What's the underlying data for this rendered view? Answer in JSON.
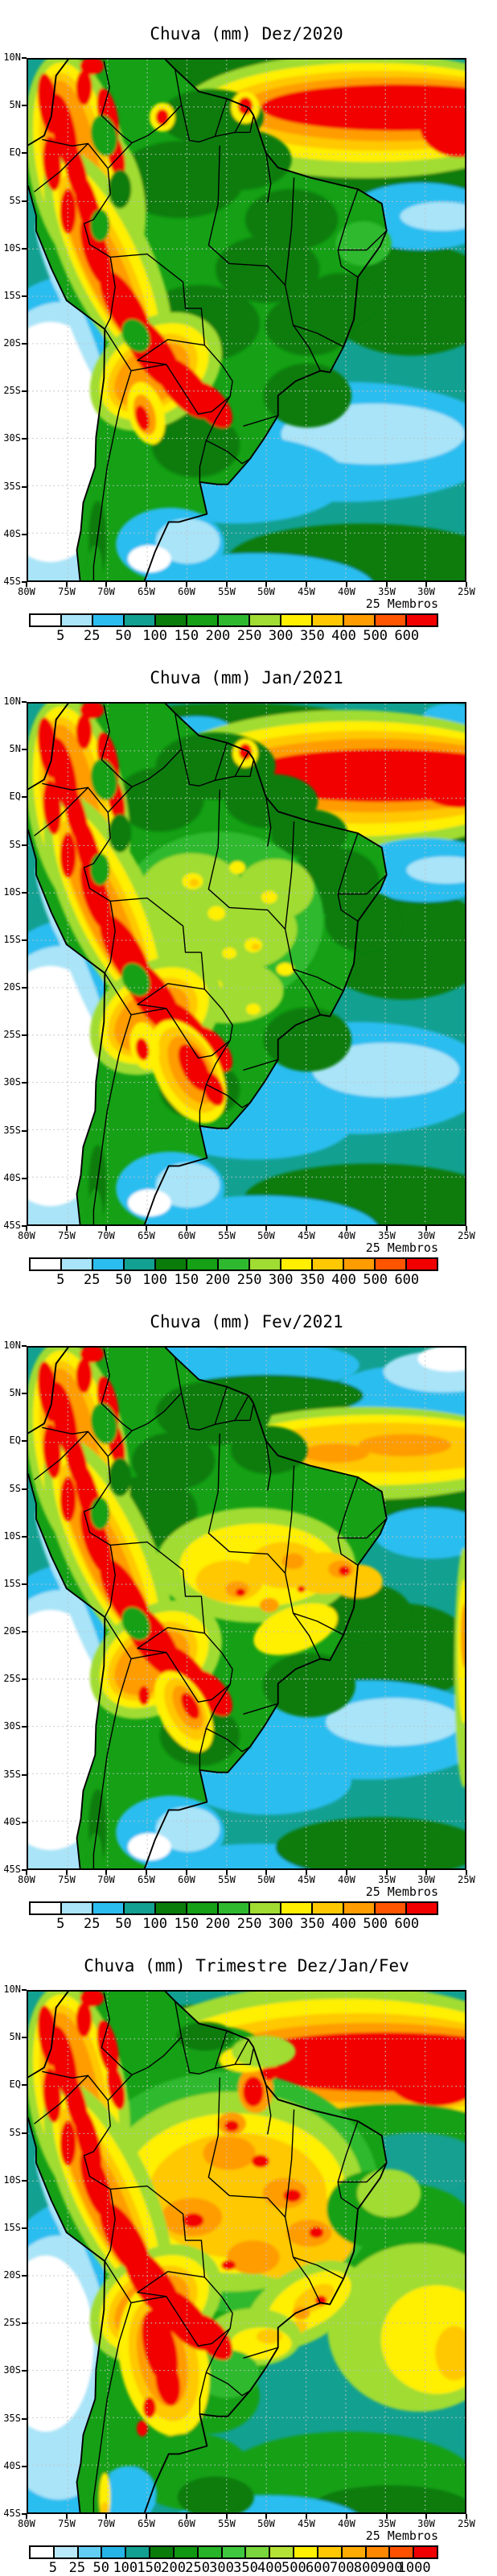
{
  "page": {
    "background": "#FFFFFF",
    "description_label": "Ensemble precipitation forecast maps, South America"
  },
  "shared": {
    "members_label": "25 Membros",
    "lat_labels": [
      "10N",
      "5N",
      "EQ",
      "5S",
      "10S",
      "15S",
      "20S",
      "25S",
      "30S",
      "35S",
      "40S",
      "45S"
    ],
    "lon_labels": [
      "80W",
      "75W",
      "70W",
      "65W",
      "60W",
      "55W",
      "50W",
      "45W",
      "40W",
      "35W",
      "30W",
      "25W"
    ]
  },
  "palettes": {
    "p13": [
      "#FFFFFF",
      "#A9E4F8",
      "#2CBDF0",
      "#12A091",
      "#0A7C0A",
      "#15A015",
      "#2FB92F",
      "#A0DC32",
      "#FFEF00",
      "#FFC800",
      "#FF9C00",
      "#FF5400",
      "#F20000"
    ],
    "p17": [
      "#FFFFFF",
      "#B9E8FA",
      "#62CEF4",
      "#24B4E6",
      "#12A091",
      "#0A7C0A",
      "#119711",
      "#28B428",
      "#3FC83F",
      "#79D63C",
      "#B4E236",
      "#FFF000",
      "#FFC800",
      "#FFAA00",
      "#FF8800",
      "#FF5000",
      "#F00000"
    ]
  },
  "field_colors": {
    "W": "#FFFFFF",
    "PB": "#A9E4F8",
    "CY": "#2CBDF0",
    "TE": "#12A091",
    "DG": "#0A7C0A",
    "GR": "#15A015",
    "MG": "#2FB92F",
    "LG": "#55CC3A",
    "YG": "#A0DC32",
    "YE": "#FFEF00",
    "GO": "#FFC800",
    "OR": "#FF9C00",
    "RO": "#FF5400",
    "RE": "#F20000"
  },
  "panels": [
    {
      "id": "dez-2020",
      "title": "Chuva (mm) Dez/2020",
      "members_label": "25 Membros",
      "colorbar": {
        "palette": "p13",
        "ticks": [
          "5",
          "25",
          "50",
          "100",
          "150",
          "200",
          "250",
          "300",
          "350",
          "400",
          "500",
          "600"
        ]
      }
    },
    {
      "id": "jan-2021",
      "title": "Chuva (mm) Jan/2021",
      "members_label": "25 Membros",
      "colorbar": {
        "palette": "p13",
        "ticks": [
          "5",
          "25",
          "50",
          "100",
          "150",
          "200",
          "250",
          "300",
          "350",
          "400",
          "500",
          "600"
        ]
      }
    },
    {
      "id": "fev-2021",
      "title": "Chuva (mm) Fev/2021",
      "members_label": "25 Membros",
      "colorbar": {
        "palette": "p13",
        "ticks": [
          "5",
          "25",
          "50",
          "100",
          "150",
          "200",
          "250",
          "300",
          "350",
          "400",
          "500",
          "600"
        ]
      }
    },
    {
      "id": "trimestre-djf",
      "title": "Chuva (mm) Trimestre Dez/Jan/Fev",
      "members_label": "25 Membros",
      "colorbar": {
        "palette": "p17",
        "ticks": [
          "5",
          "25",
          "50",
          "100",
          "150",
          "200",
          "250",
          "300",
          "350",
          "400",
          "500",
          "600",
          "700",
          "800",
          "900",
          "1000"
        ]
      }
    }
  ],
  "chart_data": [
    {
      "type": "heatmap",
      "title": "Chuva (mm) Dez/2020",
      "units": "mm",
      "ensemble_members": 25,
      "x_axis": {
        "label": "longitude",
        "ticks": [
          "80W",
          "75W",
          "70W",
          "65W",
          "60W",
          "55W",
          "50W",
          "45W",
          "40W",
          "35W",
          "30W",
          "25W"
        ]
      },
      "y_axis": {
        "label": "latitude",
        "ticks": [
          "10N",
          "5N",
          "EQ",
          "5S",
          "10S",
          "15S",
          "20S",
          "25S",
          "30S",
          "35S",
          "40S",
          "45S"
        ]
      },
      "grid_interval_deg": 5,
      "legend_position": "bottom",
      "colorbar_levels_mm": [
        5,
        25,
        50,
        100,
        150,
        200,
        250,
        300,
        350,
        400,
        500,
        600
      ],
      "high_rain_regions": [
        "Atlantic ITCZ band near 4N-8N east of 55W: >600",
        "Colombian Andes and Peru-Bolivia Andes: >600",
        "NW Argentina spot: 400-600"
      ],
      "low_rain_regions": [
        "SE Pacific off Chile and Peru coast: <5",
        "South Atlantic 25S-35S: 25-50",
        "Patagonia: 5-50"
      ],
      "land_background": "100-250 over most of Brazil"
    },
    {
      "type": "heatmap",
      "title": "Chuva (mm) Jan/2021",
      "units": "mm",
      "ensemble_members": 25,
      "x_axis": {
        "label": "longitude",
        "ticks": [
          "80W",
          "75W",
          "70W",
          "65W",
          "60W",
          "55W",
          "50W",
          "45W",
          "40W",
          "35W",
          "30W",
          "25W"
        ]
      },
      "y_axis": {
        "label": "latitude",
        "ticks": [
          "10N",
          "5N",
          "EQ",
          "5S",
          "10S",
          "15S",
          "20S",
          "25S",
          "30S",
          "35S",
          "40S",
          "45S"
        ]
      },
      "grid_interval_deg": 5,
      "legend_position": "bottom",
      "colorbar_levels_mm": [
        5,
        25,
        50,
        100,
        150,
        200,
        250,
        300,
        350,
        400,
        500,
        600
      ],
      "high_rain_regions": [
        "Strong Atlantic ITCZ band near 3N-7N: >600",
        "Andes of Colombia and Peru-Bolivia: >600",
        "central Amazonia spots: 350-450"
      ],
      "low_rain_regions": [
        "SE Pacific off Chile: <5",
        "equatorial Atlantic tongue near coast: 25-50",
        "South Atlantic 25S-35S: 25-50"
      ],
      "land_background": "150-300 over central Brazil"
    },
    {
      "type": "heatmap",
      "title": "Chuva (mm) Fev/2021",
      "units": "mm",
      "ensemble_members": 25,
      "x_axis": {
        "label": "longitude",
        "ticks": [
          "80W",
          "75W",
          "70W",
          "65W",
          "60W",
          "55W",
          "50W",
          "45W",
          "40W",
          "35W",
          "30W",
          "25W"
        ]
      },
      "y_axis": {
        "label": "latitude",
        "ticks": [
          "10N",
          "5N",
          "EQ",
          "5S",
          "10S",
          "15S",
          "20S",
          "25S",
          "30S",
          "35S",
          "40S",
          "45S"
        ]
      },
      "grid_interval_deg": 5,
      "legend_position": "bottom",
      "colorbar_levels_mm": [
        5,
        25,
        50,
        100,
        150,
        200,
        250,
        300,
        350,
        400,
        500,
        600
      ],
      "high_rain_regions": [
        "central/eastern Amazonia band 2S-8S: 350-600 with >600 spots",
        "Andes chain: >600",
        "Atlantic ITCZ weaker: 350-500"
      ],
      "low_rain_regions": [
        "SE Pacific and Chile coast: <5",
        "tropical North Atlantic: 25-100",
        "South Atlantic 25S-35S: 25-50"
      ],
      "land_background": "150-300 over interior Brazil"
    },
    {
      "type": "heatmap",
      "title": "Chuva (mm) Trimestre Dez/Jan/Fev",
      "units": "mm",
      "ensemble_members": 25,
      "x_axis": {
        "label": "longitude",
        "ticks": [
          "80W",
          "75W",
          "70W",
          "65W",
          "60W",
          "55W",
          "50W",
          "45W",
          "40W",
          "35W",
          "30W",
          "25W"
        ]
      },
      "y_axis": {
        "label": "latitude",
        "ticks": [
          "10N",
          "5N",
          "EQ",
          "5S",
          "10S",
          "15S",
          "20S",
          "25S",
          "30S",
          "35S",
          "40S",
          "45S"
        ]
      },
      "grid_interval_deg": 5,
      "legend_position": "bottom",
      "colorbar_levels_mm": [
        5,
        25,
        50,
        100,
        150,
        200,
        250,
        300,
        350,
        400,
        500,
        600,
        700,
        800,
        900,
        1000
      ],
      "high_rain_regions": [
        "Atlantic ITCZ band: >1000",
        "Andes of Colombia/Peru/Bolivia: >1000",
        "NW Argentina: >1000",
        "central Amazonia: 600-900 with local >900"
      ],
      "low_rain_regions": [
        "SE Pacific off Chile: <5-25",
        "subtropical South Atlantic: 150-400"
      ],
      "land_background": "400-700 over most of tropical Brazil"
    }
  ]
}
